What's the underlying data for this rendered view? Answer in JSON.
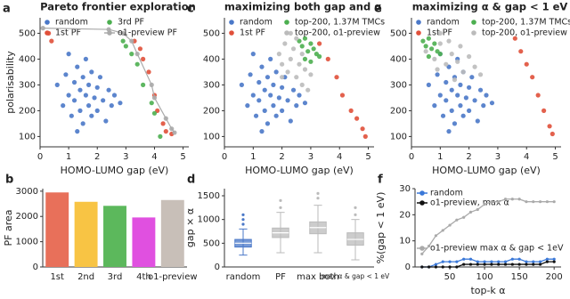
{
  "chart_data": [
    {
      "type": "scatter",
      "panel": "a",
      "title": "Pareto frontier exploration",
      "xlabel": "HOMO-LUMO gap (eV)",
      "ylabel": "polarisability",
      "xlim": [
        0,
        5.2
      ],
      "xticks": [
        0,
        1,
        2,
        3,
        4,
        5
      ],
      "ylim": [
        60,
        560
      ],
      "yticks": [
        100,
        200,
        300,
        400,
        500
      ],
      "series": [
        {
          "name": "random",
          "color": "#4a78c8",
          "x": [
            0.6,
            0.8,
            0.9,
            1.0,
            1.1,
            1.2,
            1.2,
            1.3,
            1.4,
            1.4,
            1.5,
            1.5,
            1.6,
            1.6,
            1.7,
            1.7,
            1.8,
            1.8,
            1.9,
            2.0,
            2.0,
            2.1,
            2.2,
            2.3,
            2.4,
            2.5,
            2.6,
            2.8,
            1.0,
            1.3
          ],
          "values": [
            300,
            220,
            340,
            260,
            180,
            310,
            240,
            370,
            200,
            280,
            330,
            150,
            260,
            400,
            220,
            300,
            180,
            350,
            250,
            290,
            200,
            330,
            240,
            160,
            280,
            220,
            260,
            230,
            420,
            120
          ]
        },
        {
          "name": "1st PF",
          "color": "#e0503a",
          "x": [
            0.3,
            0.4,
            3.3,
            3.5,
            3.6,
            3.8,
            4.0,
            4.1,
            4.3,
            4.4,
            4.6
          ],
          "values": [
            500,
            470,
            470,
            440,
            400,
            350,
            260,
            200,
            150,
            120,
            110
          ]
        },
        {
          "name": "3rd PF",
          "color": "#4caf50",
          "x": [
            2.9,
            3.0,
            3.2,
            3.4,
            3.6,
            3.9,
            4.0,
            4.2
          ],
          "values": [
            470,
            450,
            420,
            380,
            300,
            230,
            190,
            100
          ]
        },
        {
          "name": "o1-preview PF",
          "color": "#aaaaaa",
          "line": true,
          "x": [
            0.1,
            2.4,
            2.9,
            3.2,
            3.4,
            3.9,
            4.0,
            4.4,
            4.6,
            4.7
          ],
          "values": [
            520,
            515,
            500,
            470,
            420,
            300,
            250,
            170,
            130,
            115
          ]
        }
      ]
    },
    {
      "type": "scatter",
      "panel": "c",
      "title": "maximizing both gap and α",
      "xlabel": "HOMO-LUMO gap (eV)",
      "xlim": [
        0,
        5.2
      ],
      "xticks": [
        0,
        1,
        2,
        3,
        4,
        5
      ],
      "ylim": [
        60,
        560
      ],
      "yticks": [
        100,
        200,
        300,
        400,
        500
      ],
      "series": [
        {
          "name": "random",
          "color": "#4a78c8",
          "x": [
            0.6,
            0.8,
            0.9,
            1.0,
            1.1,
            1.2,
            1.2,
            1.3,
            1.4,
            1.4,
            1.5,
            1.5,
            1.6,
            1.6,
            1.7,
            1.7,
            1.8,
            1.8,
            1.9,
            2.0,
            2.0,
            2.1,
            2.2,
            2.3,
            2.4,
            2.5,
            2.6,
            2.8,
            1.0,
            1.3
          ],
          "values": [
            300,
            220,
            340,
            260,
            180,
            310,
            240,
            370,
            200,
            280,
            330,
            150,
            260,
            400,
            220,
            300,
            180,
            350,
            250,
            290,
            200,
            330,
            240,
            160,
            280,
            220,
            260,
            230,
            420,
            120
          ]
        },
        {
          "name": "1st PF",
          "color": "#e0503a",
          "x": [
            3.3,
            3.6,
            3.9,
            4.1,
            4.4,
            4.6,
            4.8,
            4.9
          ],
          "values": [
            460,
            400,
            330,
            260,
            200,
            170,
            130,
            100
          ]
        },
        {
          "name": "top-200, 1.37M TMCs",
          "color": "#4caf50",
          "x": [
            2.6,
            2.7,
            2.8,
            2.9,
            3.0,
            3.1,
            3.2,
            3.3,
            2.8,
            3.0
          ],
          "values": [
            470,
            450,
            480,
            430,
            460,
            440,
            420,
            410,
            400,
            390
          ]
        },
        {
          "name": "top-200, o1-preview",
          "color": "#bbbbbb",
          "x": [
            1.9,
            2.0,
            2.1,
            2.2,
            2.3,
            2.4,
            2.5,
            2.6,
            2.7,
            2.8,
            2.9,
            3.0,
            2.3,
            2.5,
            2.0,
            2.7
          ],
          "values": [
            420,
            380,
            460,
            350,
            400,
            440,
            330,
            380,
            300,
            360,
            280,
            340,
            500,
            480,
            330,
            420
          ]
        }
      ]
    },
    {
      "type": "scatter",
      "panel": "e",
      "title": "maximizing α & gap < 1 eV",
      "xlabel": "HOMO-LUMO gap (eV)",
      "xlim": [
        0,
        5.2
      ],
      "xticks": [
        0,
        1,
        2,
        3,
        4,
        5
      ],
      "ylim": [
        60,
        560
      ],
      "yticks": [
        100,
        200,
        300,
        400,
        500
      ],
      "series": [
        {
          "name": "random",
          "color": "#4a78c8",
          "x": [
            0.6,
            0.8,
            0.9,
            1.0,
            1.1,
            1.2,
            1.2,
            1.3,
            1.4,
            1.4,
            1.5,
            1.5,
            1.6,
            1.6,
            1.7,
            1.7,
            1.8,
            1.8,
            1.9,
            2.0,
            2.0,
            2.1,
            2.2,
            2.3,
            2.4,
            2.5,
            2.6,
            2.8,
            1.0,
            1.3
          ],
          "values": [
            300,
            220,
            340,
            260,
            180,
            310,
            240,
            370,
            200,
            280,
            330,
            150,
            260,
            400,
            220,
            300,
            180,
            350,
            250,
            290,
            200,
            330,
            240,
            160,
            280,
            220,
            260,
            230,
            420,
            120
          ]
        },
        {
          "name": "1st PF",
          "color": "#e0503a",
          "x": [
            3.6,
            3.8,
            4.0,
            4.2,
            4.4,
            4.6,
            4.8,
            4.9
          ],
          "values": [
            480,
            430,
            380,
            330,
            260,
            200,
            140,
            110
          ]
        },
        {
          "name": "top-200, 1.37M TMCs",
          "color": "#4caf50",
          "x": [
            0.4,
            0.5,
            0.6,
            0.7,
            0.8,
            0.9,
            1.0,
            0.6
          ],
          "values": [
            470,
            450,
            480,
            440,
            460,
            430,
            420,
            410
          ]
        },
        {
          "name": "top-200, o1-preview",
          "color": "#bbbbbb",
          "x": [
            0.5,
            0.8,
            1.0,
            1.2,
            1.4,
            1.6,
            1.8,
            2.0,
            2.2,
            2.4,
            1.0,
            1.3,
            1.7,
            0.9,
            1.5
          ],
          "values": [
            430,
            400,
            460,
            380,
            420,
            390,
            350,
            410,
            370,
            340,
            500,
            470,
            450,
            360,
            320
          ]
        }
      ]
    },
    {
      "type": "bar",
      "panel": "b",
      "ylabel": "PF area",
      "categories": [
        "1st",
        "2nd",
        "3rd",
        "4th",
        "o1-preview"
      ],
      "values": [
        2950,
        2580,
        2420,
        1960,
        2650
      ],
      "colors": [
        "#e8705a",
        "#f8c444",
        "#5cb85c",
        "#e050e0",
        "#c8bfb8"
      ],
      "ylim": [
        0,
        3100
      ],
      "yticks": [
        0,
        1000,
        2000,
        3000
      ]
    },
    {
      "type": "box",
      "panel": "d",
      "ylabel": "gap × α",
      "categories": [
        "random",
        "PF",
        "max both",
        "max α & gap < 1 eV"
      ],
      "colors": [
        "#4a78c8",
        "#bbbbbb",
        "#bbbbbb",
        "#bbbbbb"
      ],
      "boxes": [
        {
          "min": 250,
          "q1": 420,
          "median": 500,
          "q3": 580,
          "max": 800,
          "outliers": [
            900,
            1000,
            1100
          ]
        },
        {
          "min": 300,
          "q1": 620,
          "median": 720,
          "q3": 820,
          "max": 1150,
          "outliers": [
            1250,
            1400
          ]
        },
        {
          "min": 300,
          "q1": 700,
          "median": 830,
          "q3": 950,
          "max": 1300,
          "outliers": [
            1450,
            1550
          ]
        },
        {
          "min": 150,
          "q1": 460,
          "median": 580,
          "q3": 720,
          "max": 1000,
          "outliers": [
            1100,
            1250
          ]
        }
      ],
      "ylim": [
        0,
        1650
      ],
      "yticks": [
        0,
        500,
        1000,
        1500
      ]
    },
    {
      "type": "line",
      "panel": "f",
      "xlabel": "top-k α",
      "ylabel": "%(gap < 1 eV)",
      "x": [
        10,
        20,
        30,
        40,
        50,
        60,
        70,
        80,
        90,
        100,
        110,
        120,
        130,
        140,
        150,
        160,
        170,
        180,
        190,
        200
      ],
      "xlim": [
        0,
        210
      ],
      "xticks": [
        50,
        100,
        150,
        200
      ],
      "ylim": [
        0,
        30
      ],
      "yticks": [
        0,
        10,
        20,
        30
      ],
      "series": [
        {
          "name": "random",
          "color": "#3a78d8",
          "values": [
            0,
            0,
            1,
            2,
            2,
            2,
            3,
            3,
            2,
            2,
            2,
            2,
            2,
            3,
            3,
            2,
            2,
            2,
            3,
            3
          ]
        },
        {
          "name": "o1-preview, max α",
          "color": "#111111",
          "values": [
            0,
            0,
            0,
            0,
            0,
            0,
            1,
            1,
            1,
            1,
            1,
            1,
            1,
            1,
            1,
            1,
            1,
            1,
            2,
            2
          ]
        },
        {
          "name": "o1-preview max α & gap < 1eV",
          "color": "#aaaaaa",
          "values": [
            5,
            8,
            12,
            14,
            16,
            18,
            19,
            21,
            22,
            24,
            25,
            25,
            26,
            26,
            26,
            25,
            25,
            25,
            25,
            25
          ]
        }
      ]
    }
  ]
}
